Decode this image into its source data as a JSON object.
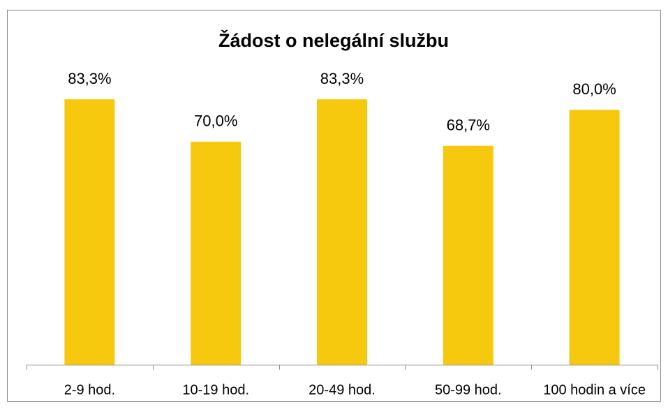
{
  "chart_data": {
    "type": "bar",
    "title": "Žádost o nelegální službu",
    "categories": [
      "2-9 hod.",
      "10-19 hod.",
      "20-49 hod.",
      "50-99 hod.",
      "100 hodin a více"
    ],
    "values": [
      83.3,
      70.0,
      83.3,
      68.7,
      80.0
    ],
    "value_labels": [
      "83,3%",
      "70,0%",
      "83,3%",
      "68,7%",
      "80,0%"
    ],
    "color": "#f6c90e",
    "ylim": [
      0,
      100
    ]
  }
}
